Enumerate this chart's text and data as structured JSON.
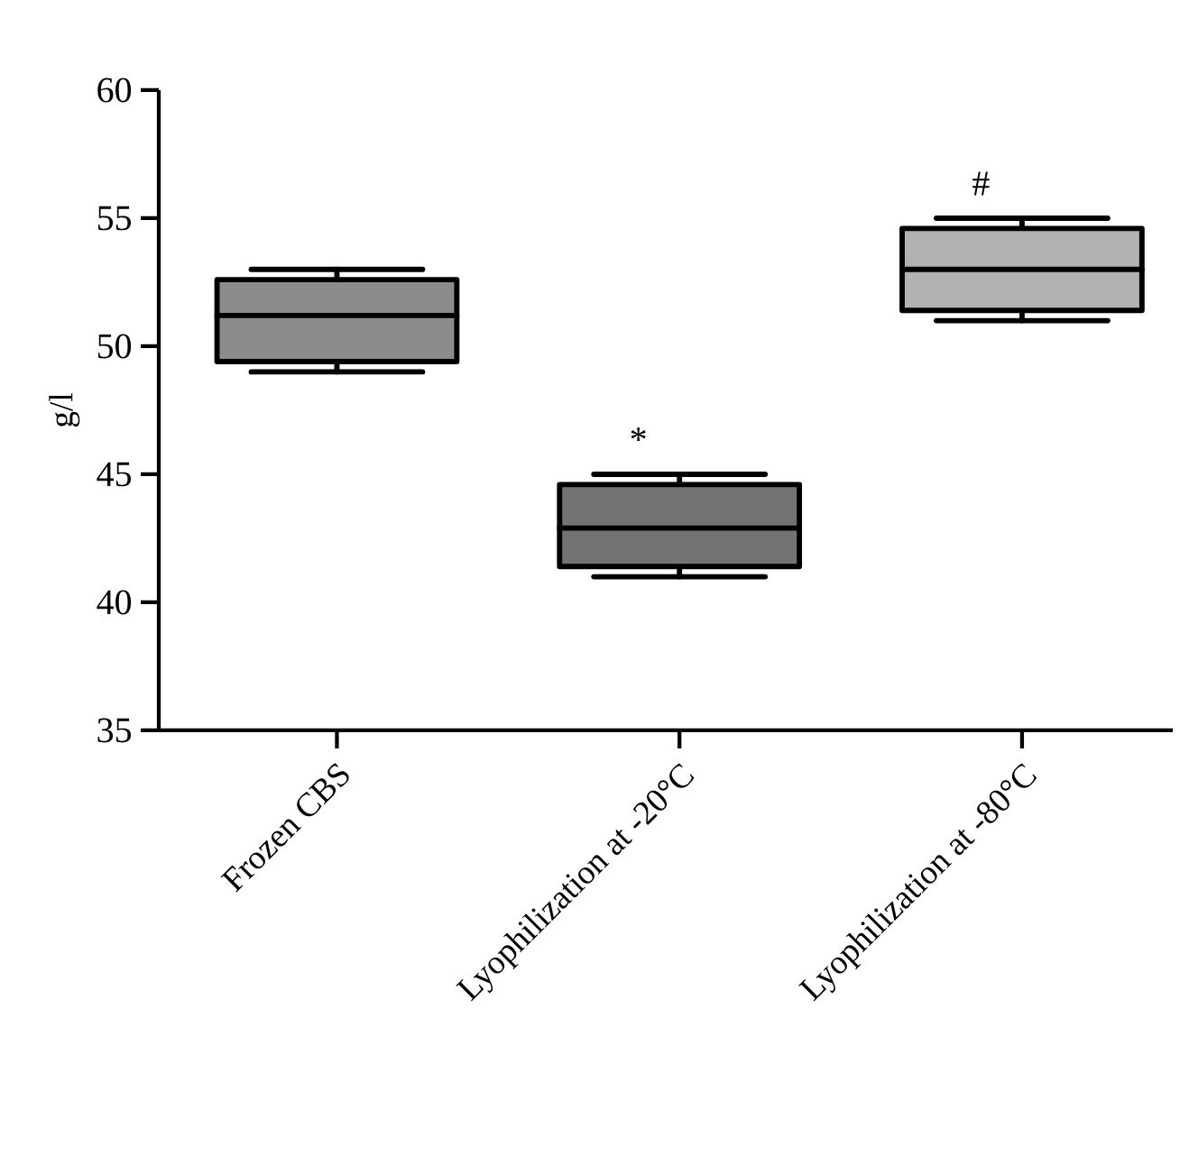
{
  "chart_data": {
    "type": "box",
    "ylabel": "g/l",
    "categories": [
      "Frozen CBS",
      "Lyophilization at -20°C",
      "Lyophilization at -80°C"
    ],
    "boxes": [
      {
        "low": 49.0,
        "q1": 49.4,
        "median": 51.2,
        "q3": 52.6,
        "high": 53.0
      },
      {
        "low": 41.0,
        "q1": 41.4,
        "median": 42.9,
        "q3": 44.6,
        "high": 45.0
      },
      {
        "low": 51.0,
        "q1": 51.4,
        "median": 53.0,
        "q3": 54.6,
        "high": 55.0
      }
    ],
    "color": "#000000",
    "ylim": [
      35,
      60
    ],
    "yticks": [
      35,
      40,
      45,
      50,
      55,
      60
    ],
    "grid": false,
    "annotations": [
      "*",
      "#"
    ]
  }
}
